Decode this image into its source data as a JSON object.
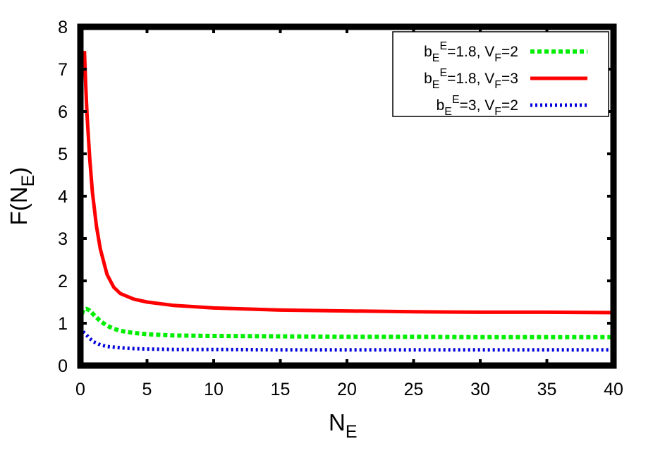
{
  "chart_data": {
    "type": "line",
    "title": "",
    "xlabel": "N_E",
    "ylabel": "F(N_E)",
    "xlim": [
      0,
      40
    ],
    "ylim": [
      0,
      8
    ],
    "xticks": [
      0,
      5,
      10,
      15,
      20,
      25,
      30,
      35,
      40
    ],
    "yticks": [
      0,
      1,
      2,
      3,
      4,
      5,
      6,
      7,
      8
    ],
    "grid": false,
    "legend_position": "top-right",
    "series": [
      {
        "name": "b_E^E=1.8, V_F=2",
        "legend": {
          "b": "b",
          "sub1": "E",
          "sup": "E",
          "eq1": "=1.8, ",
          "v": "V",
          "sub2": "F",
          "eq2": "=2"
        },
        "color": "#00ee00",
        "style": "dashed",
        "x": [
          0.1,
          0.25,
          0.45,
          0.7,
          1.0,
          1.5,
          2.0,
          2.5,
          3.0,
          4.0,
          5.0,
          7.0,
          10.0,
          15.0,
          20.0,
          25.0,
          30.0,
          35.0,
          40.0
        ],
        "y": [
          1.22,
          1.32,
          1.34,
          1.3,
          1.2,
          1.05,
          0.94,
          0.87,
          0.82,
          0.77,
          0.74,
          0.71,
          0.7,
          0.69,
          0.68,
          0.68,
          0.67,
          0.67,
          0.67
        ]
      },
      {
        "name": "b_E^E=1.8, V_F=3",
        "legend": {
          "b": "b",
          "sub1": "E",
          "sup": "E",
          "eq1": "=1.8, ",
          "v": "V",
          "sub2": "F",
          "eq2": "=3"
        },
        "color": "#ff0000",
        "style": "solid",
        "x": [
          0.3,
          0.4,
          0.5,
          0.7,
          0.9,
          1.2,
          1.5,
          2.0,
          2.5,
          3.0,
          4.0,
          5.0,
          7.0,
          10.0,
          15.0,
          20.0,
          25.0,
          30.0,
          35.0,
          40.0
        ],
        "y": [
          7.43,
          6.6,
          5.9,
          4.9,
          4.1,
          3.3,
          2.75,
          2.15,
          1.85,
          1.7,
          1.57,
          1.5,
          1.42,
          1.36,
          1.31,
          1.29,
          1.27,
          1.26,
          1.26,
          1.25
        ]
      },
      {
        "name": "b_E^E=3, V_F=2",
        "legend": {
          "b": "b",
          "sub1": "E",
          "sup": "E",
          "eq1": "=3, ",
          "v": "V",
          "sub2": "F",
          "eq2": "=2"
        },
        "color": "#0000dd",
        "style": "dotted",
        "x": [
          0.2,
          0.4,
          0.7,
          1.0,
          1.5,
          2.0,
          3.0,
          4.0,
          5.0,
          7.0,
          10.0,
          15.0,
          20.0,
          25.0,
          30.0,
          35.0,
          40.0
        ],
        "y": [
          0.8,
          0.74,
          0.64,
          0.56,
          0.49,
          0.45,
          0.42,
          0.4,
          0.39,
          0.38,
          0.38,
          0.37,
          0.37,
          0.37,
          0.37,
          0.37,
          0.37
        ]
      }
    ]
  },
  "axes": {
    "xlabel_main": "N",
    "xlabel_sub": "E",
    "ylabel_prefix": "F(N",
    "ylabel_sub": "E",
    "ylabel_suffix": ")"
  }
}
